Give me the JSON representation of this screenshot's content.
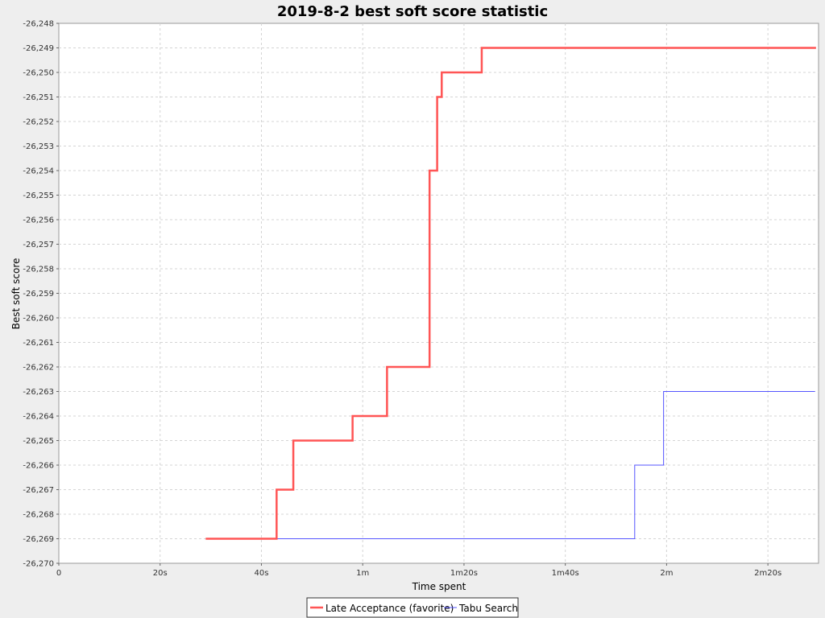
{
  "chart_data": {
    "type": "line",
    "step": true,
    "title": "2019-8-2 best soft score statistic",
    "xlabel": "Time spent",
    "ylabel": "Best soft score",
    "xlim": [
      0,
      150
    ],
    "ylim": [
      -26270,
      -26248
    ],
    "x_ticks": [
      {
        "value": 0,
        "label": "0"
      },
      {
        "value": 20,
        "label": "20s"
      },
      {
        "value": 40,
        "label": "40s"
      },
      {
        "value": 60,
        "label": "1m"
      },
      {
        "value": 80,
        "label": "1m20s"
      },
      {
        "value": 100,
        "label": "1m40s"
      },
      {
        "value": 120,
        "label": "2m"
      },
      {
        "value": 140,
        "label": "2m20s"
      }
    ],
    "y_ticks": [
      {
        "value": -26248,
        "label": "-26,248"
      },
      {
        "value": -26249,
        "label": "-26,249"
      },
      {
        "value": -26250,
        "label": "-26,250"
      },
      {
        "value": -26251,
        "label": "-26,251"
      },
      {
        "value": -26252,
        "label": "-26,252"
      },
      {
        "value": -26253,
        "label": "-26,253"
      },
      {
        "value": -26254,
        "label": "-26,254"
      },
      {
        "value": -26255,
        "label": "-26,255"
      },
      {
        "value": -26256,
        "label": "-26,256"
      },
      {
        "value": -26257,
        "label": "-26,257"
      },
      {
        "value": -26258,
        "label": "-26,258"
      },
      {
        "value": -26259,
        "label": "-26,259"
      },
      {
        "value": -26260,
        "label": "-26,260"
      },
      {
        "value": -26261,
        "label": "-26,261"
      },
      {
        "value": -26262,
        "label": "-26,262"
      },
      {
        "value": -26263,
        "label": "-26,263"
      },
      {
        "value": -26264,
        "label": "-26,264"
      },
      {
        "value": -26265,
        "label": "-26,265"
      },
      {
        "value": -26266,
        "label": "-26,266"
      },
      {
        "value": -26267,
        "label": "-26,267"
      },
      {
        "value": -26268,
        "label": "-26,268"
      },
      {
        "value": -26269,
        "label": "-26,269"
      },
      {
        "value": -26270,
        "label": "-26,270"
      }
    ],
    "grid": true,
    "legend_position": "bottom",
    "series": [
      {
        "name": "Late Acceptance (favorite)",
        "color": "#ff5555",
        "thick": true,
        "points": [
          [
            29,
            -26269
          ],
          [
            43,
            -26267
          ],
          [
            46.3,
            -26265
          ],
          [
            58,
            -26264
          ],
          [
            64.8,
            -26262
          ],
          [
            73.2,
            -26254
          ],
          [
            74.7,
            -26251
          ],
          [
            75.6,
            -26250
          ],
          [
            83.5,
            -26249
          ],
          [
            149.5,
            -26249
          ]
        ]
      },
      {
        "name": "Tabu Search",
        "color": "#5555ff",
        "thick": false,
        "points": [
          [
            43,
            -26269
          ],
          [
            113.7,
            -26266
          ],
          [
            119.4,
            -26263
          ],
          [
            149.3,
            -26263
          ]
        ]
      }
    ]
  }
}
